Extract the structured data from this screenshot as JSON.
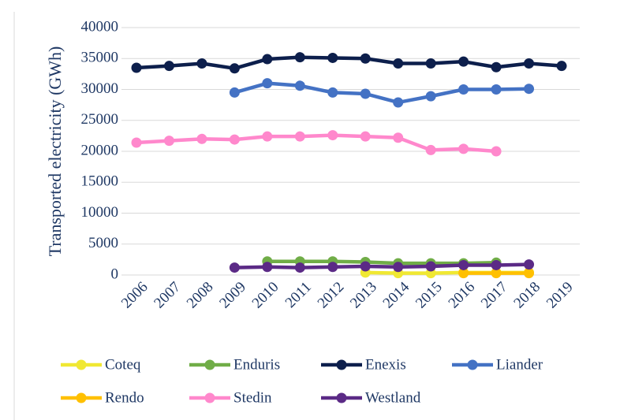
{
  "chart_data": {
    "type": "line",
    "y_label": "Transported electricity (GWh)",
    "categories": [
      "2006",
      "2007",
      "2008",
      "2009",
      "2010",
      "2011",
      "2012",
      "2013",
      "2014",
      "2015",
      "2016",
      "2017",
      "2018",
      "2019"
    ],
    "ylim": [
      0,
      40000
    ],
    "yticks": [
      0,
      5000,
      10000,
      15000,
      20000,
      25000,
      30000,
      35000,
      40000
    ],
    "grid": true,
    "legend": "bottom",
    "series": [
      {
        "name": "Coteq",
        "color": "#f0e832",
        "values": [
          null,
          null,
          null,
          null,
          null,
          null,
          null,
          400,
          300,
          300,
          400,
          400,
          400,
          null
        ]
      },
      {
        "name": "Enduris",
        "color": "#70ad47",
        "values": [
          null,
          null,
          null,
          null,
          2200,
          2200,
          2200,
          2100,
          1900,
          1900,
          1900,
          2000,
          null,
          null
        ]
      },
      {
        "name": "Enexis",
        "color": "#0d1f4c",
        "values": [
          33500,
          33800,
          34200,
          33400,
          34900,
          35200,
          35100,
          35000,
          34200,
          34200,
          34500,
          33600,
          34200,
          33800
        ]
      },
      {
        "name": "Liander",
        "color": "#4472c4",
        "values": [
          null,
          null,
          null,
          29500,
          31000,
          30600,
          29500,
          29300,
          27900,
          28900,
          30000,
          30000,
          30100,
          null
        ]
      },
      {
        "name": "Rendo",
        "color": "#ffc000",
        "values": [
          null,
          null,
          null,
          null,
          null,
          null,
          null,
          null,
          null,
          null,
          300,
          300,
          300,
          null
        ]
      },
      {
        "name": "Stedin",
        "color": "#ff88cc",
        "values": [
          21400,
          21700,
          22000,
          21900,
          22400,
          22400,
          22600,
          22400,
          22200,
          20200,
          20400,
          20000,
          null,
          null
        ]
      },
      {
        "name": "Westland",
        "color": "#5b2a86",
        "values": [
          null,
          null,
          null,
          1200,
          1300,
          1200,
          1300,
          1400,
          1300,
          1400,
          1600,
          1600,
          1700,
          null
        ]
      }
    ]
  }
}
